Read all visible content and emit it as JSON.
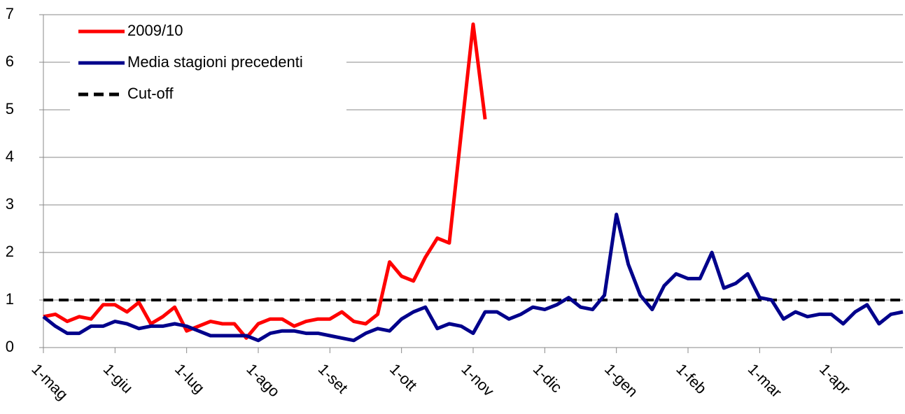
{
  "chart_data": {
    "type": "line",
    "categories": [
      "1-mag",
      null,
      null,
      null,
      null,
      null,
      "1-giu",
      null,
      null,
      null,
      null,
      null,
      "1-lug",
      null,
      null,
      null,
      null,
      null,
      "1-ago",
      null,
      null,
      null,
      null,
      null,
      "1-set",
      null,
      null,
      null,
      null,
      null,
      "1-ott",
      null,
      null,
      null,
      null,
      null,
      "1-nov",
      null,
      null,
      null,
      null,
      null,
      "1-dic",
      null,
      null,
      null,
      null,
      null,
      "1-gen",
      null,
      null,
      null,
      null,
      null,
      "1-feb",
      null,
      null,
      null,
      null,
      null,
      "1-mar",
      null,
      null,
      null,
      null,
      null,
      "1-apr",
      null,
      null,
      null,
      null,
      null,
      null
    ],
    "series": [
      {
        "name": "2009/10",
        "color": "#ff0000",
        "values": [
          0.65,
          0.7,
          0.55,
          0.65,
          0.6,
          0.9,
          0.9,
          0.75,
          0.95,
          0.5,
          0.65,
          0.85,
          0.35,
          0.45,
          0.55,
          0.5,
          0.5,
          0.2,
          0.5,
          0.6,
          0.6,
          0.45,
          0.55,
          0.6,
          0.6,
          0.75,
          0.55,
          0.5,
          0.7,
          1.8,
          1.5,
          1.4,
          1.9,
          2.3,
          2.2,
          4.5,
          6.8,
          4.8,
          null,
          null,
          null,
          null,
          null,
          null,
          null,
          null,
          null,
          null,
          null,
          null,
          null,
          null,
          null,
          null,
          null,
          null,
          null,
          null,
          null,
          null,
          null,
          null,
          null,
          null,
          null,
          null,
          null,
          null,
          null,
          null,
          null,
          null,
          null
        ]
      },
      {
        "name": "Media stagioni precedenti",
        "color": "#00008b",
        "values": [
          0.65,
          0.45,
          0.3,
          0.3,
          0.45,
          0.45,
          0.55,
          0.5,
          0.4,
          0.45,
          0.45,
          0.5,
          0.45,
          0.35,
          0.25,
          0.25,
          0.25,
          0.25,
          0.15,
          0.3,
          0.35,
          0.35,
          0.3,
          0.3,
          0.25,
          0.2,
          0.15,
          0.3,
          0.4,
          0.35,
          0.6,
          0.75,
          0.85,
          0.4,
          0.5,
          0.45,
          0.3,
          0.75,
          0.75,
          0.6,
          0.7,
          0.85,
          0.8,
          0.9,
          1.05,
          0.85,
          0.8,
          1.1,
          2.8,
          1.75,
          1.1,
          0.8,
          1.3,
          1.55,
          1.45,
          1.45,
          2.0,
          1.25,
          1.35,
          1.55,
          1.05,
          1.0,
          0.6,
          0.75,
          0.65,
          0.7,
          0.7,
          0.5,
          0.75,
          0.9,
          0.5,
          0.7,
          0.75
        ]
      }
    ],
    "reference_line": {
      "name": "Cut-off",
      "value": 1,
      "color": "#000000",
      "dashed": true
    },
    "ylim": [
      0,
      7
    ],
    "yticks": [
      0,
      1,
      2,
      3,
      4,
      5,
      6,
      7
    ],
    "grid": true,
    "legend": "top-left"
  }
}
